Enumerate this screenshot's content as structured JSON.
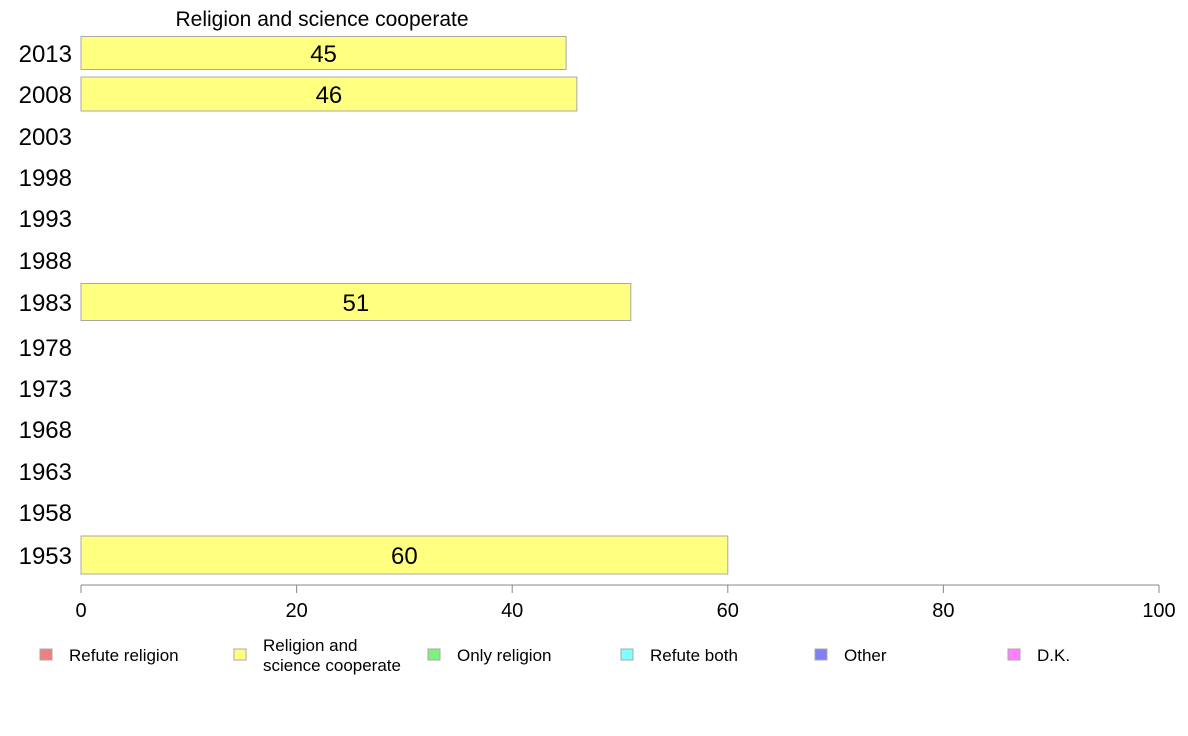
{
  "chart_data": {
    "type": "bar",
    "orientation": "horizontal",
    "title": "Religion and science cooperate",
    "categories": [
      "2013",
      "2008",
      "2003",
      "1998",
      "1993",
      "1988",
      "1983",
      "1978",
      "1973",
      "1968",
      "1963",
      "1958",
      "1953"
    ],
    "series": [
      {
        "name": "Religion and science cooperate",
        "color": "#ffff80",
        "values": [
          45,
          46,
          null,
          null,
          null,
          null,
          51,
          null,
          null,
          null,
          null,
          null,
          60
        ],
        "labels": [
          "45",
          "46",
          "",
          "",
          "",
          "",
          "51",
          "",
          "",
          "",
          "",
          "",
          "60"
        ]
      }
    ],
    "xlim": [
      0,
      100
    ],
    "xticks": [
      0,
      20,
      40,
      60,
      80,
      100
    ],
    "xtick_labels": [
      "0",
      "20",
      "40",
      "60",
      "80",
      "100"
    ],
    "grid": false,
    "legend_placement": "bottom",
    "legend": [
      {
        "label_lines": [
          "Refute religion"
        ],
        "color": "#f08080"
      },
      {
        "label_lines": [
          "Religion and",
          "science cooperate"
        ],
        "color": "#ffff80"
      },
      {
        "label_lines": [
          "Only religion"
        ],
        "color": "#80f080"
      },
      {
        "label_lines": [
          "Refute both"
        ],
        "color": "#80ffff"
      },
      {
        "label_lines": [
          "Other"
        ],
        "color": "#8080f0"
      },
      {
        "label_lines": [
          "D.K."
        ],
        "color": "#ff80ff"
      }
    ]
  }
}
